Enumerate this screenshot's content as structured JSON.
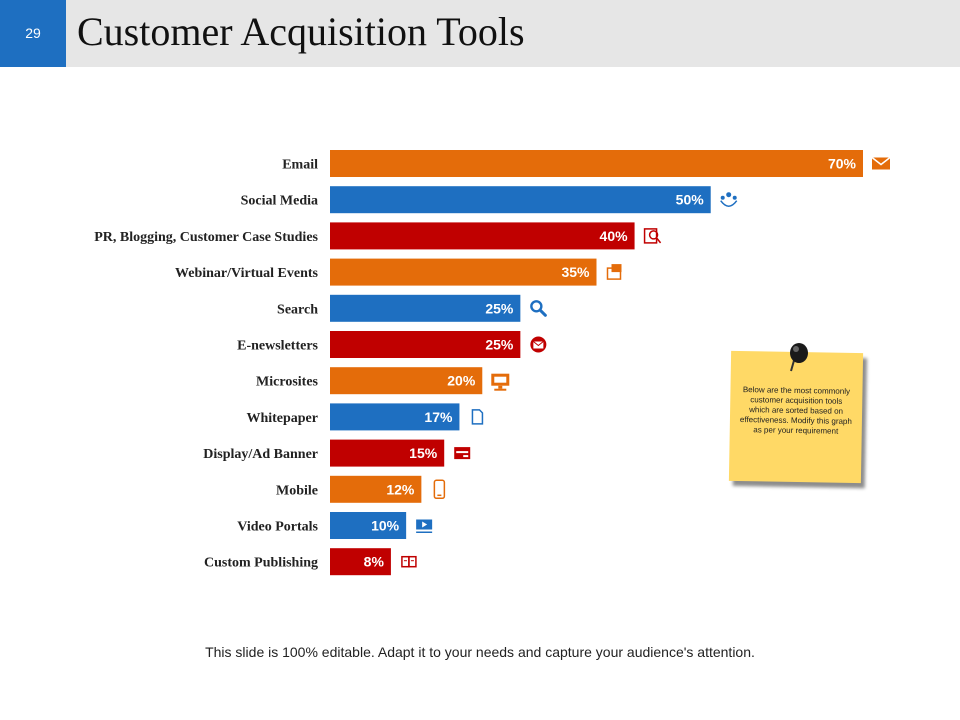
{
  "slide": {
    "number": "29",
    "title": "Customer Acquisition Tools",
    "note": "Below are the most commonly customer acquisition tools which are sorted based on effectiveness. Modify this graph as per your requirement",
    "footer": "This slide is 100% editable. Adapt it to your needs and capture your audience's attention."
  },
  "colors": {
    "orange": "#e46c0a",
    "blue": "#1e6fc1",
    "red": "#c00000"
  },
  "chart_data": {
    "type": "bar",
    "orientation": "horizontal",
    "categories": [
      "Email",
      "Social Media",
      "PR, Blogging, Customer Case Studies",
      "Webinar/Virtual  Events",
      "Search",
      "E-newsletters",
      "Microsites",
      "Whitepaper",
      "Display/Ad Banner",
      "Mobile",
      "Video Portals",
      "Custom Publishing"
    ],
    "values": [
      70,
      50,
      40,
      35,
      25,
      25,
      20,
      17,
      15,
      12,
      10,
      8
    ],
    "value_labels": [
      "70%",
      "50%",
      "40%",
      "35%",
      "25%",
      "25%",
      "20%",
      "17%",
      "15%",
      "12%",
      "10%",
      "8%"
    ],
    "bar_colors": [
      "orange",
      "blue",
      "red",
      "orange",
      "blue",
      "red",
      "orange",
      "blue",
      "red",
      "orange",
      "blue",
      "red"
    ],
    "icons": [
      "envelope-icon",
      "hands-network-icon",
      "magnifier-document-icon",
      "picture-icon",
      "search-icon",
      "email-envelope-icon",
      "monitor-icon",
      "document-icon",
      "ad-banner-icon",
      "mobile-phone-icon",
      "video-icon",
      "book-icon"
    ],
    "xlim": [
      0,
      70
    ],
    "unit": "%",
    "grid": false,
    "legend": "none"
  }
}
